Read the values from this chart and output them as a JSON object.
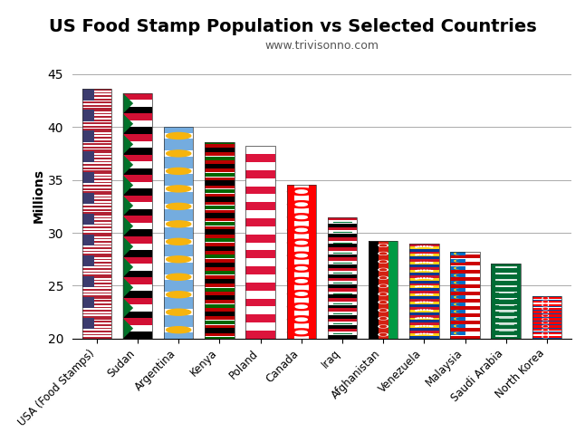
{
  "title": "US Food Stamp Population vs Selected Countries",
  "subtitle": "www.trivisonno.com",
  "ylabel": "Millions",
  "categories": [
    "USA (Food Stamps)",
    "Sudan",
    "Argentina",
    "Kenya",
    "Poland",
    "Canada",
    "Iraq",
    "Afghanistan",
    "Venezuela",
    "Malaysia",
    "Saudi Arabia",
    "North Korea"
  ],
  "values": [
    43.6,
    43.2,
    40.0,
    38.6,
    38.2,
    34.5,
    31.5,
    29.2,
    29.0,
    28.2,
    27.1,
    24.0
  ],
  "ylim": [
    20,
    47
  ],
  "yticks": [
    20,
    25,
    30,
    35,
    40,
    45
  ],
  "bg_color": "#ffffff",
  "grid_color": "#aaaaaa",
  "n_flag_repeats": 12
}
